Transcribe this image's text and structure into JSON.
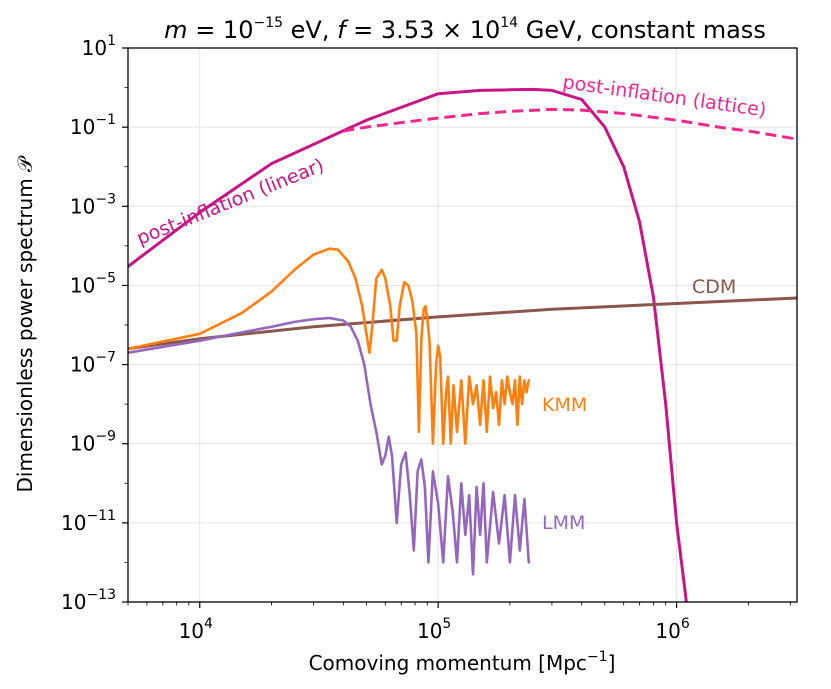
{
  "chart_data": {
    "type": "line",
    "title_parts": {
      "m_var": "m",
      "m_eq": " = 10",
      "m_exp": "−15",
      "m_unit": " eV, ",
      "f_var": "f",
      "f_eq": " = 3.53 × 10",
      "f_exp": "14",
      "f_rest": " GeV, constant mass"
    },
    "xlabel_pre": "Comoving momentum [Mpc",
    "xlabel_exp": "−1",
    "xlabel_post": "]",
    "ylabel": "Dimensionless power spectrum 𝒫",
    "xscale": "log",
    "yscale": "log",
    "xlim": [
      5000,
      3200000
    ],
    "ylim": [
      1e-13,
      10
    ],
    "grid": true,
    "x_ticks": [
      {
        "value": 10000,
        "base": "10",
        "exp": "4"
      },
      {
        "value": 100000,
        "base": "10",
        "exp": "5"
      },
      {
        "value": 1000000,
        "base": "10",
        "exp": "6"
      }
    ],
    "y_ticks": [
      {
        "value": 10,
        "base": "10",
        "exp": "1"
      },
      {
        "value": 0.1,
        "base": "10",
        "exp": "−1"
      },
      {
        "value": 0.001,
        "base": "10",
        "exp": "−3"
      },
      {
        "value": 1e-05,
        "base": "10",
        "exp": "−5"
      },
      {
        "value": 1e-07,
        "base": "10",
        "exp": "−7"
      },
      {
        "value": 1e-09,
        "base": "10",
        "exp": "−9"
      },
      {
        "value": 1e-11,
        "base": "10",
        "exp": "−11"
      },
      {
        "value": 1e-13,
        "base": "10",
        "exp": "−13"
      }
    ],
    "series": [
      {
        "name": "post-inflation (linear)",
        "color": "#c71585",
        "style": "solid",
        "x": [
          5000,
          10000,
          20000,
          50000,
          100000,
          150000,
          200000,
          250000,
          300000,
          400000,
          500000,
          600000,
          700000,
          800000,
          900000,
          1000000,
          1100000
        ],
        "y": [
          3e-05,
          0.0007,
          0.012,
          0.15,
          0.7,
          0.85,
          0.88,
          0.9,
          0.85,
          0.5,
          0.1,
          0.01,
          0.0004,
          5e-06,
          1e-08,
          1e-11,
          1e-13
        ]
      },
      {
        "name": "post-inflation (lattice)",
        "color": "#f0288e",
        "style": "dashed",
        "x": [
          40000,
          50000,
          70000,
          100000,
          150000,
          200000,
          300000,
          400000,
          600000,
          1000000,
          1500000,
          2000000,
          3200000
        ],
        "y": [
          0.08,
          0.1,
          0.13,
          0.17,
          0.22,
          0.25,
          0.28,
          0.27,
          0.22,
          0.15,
          0.1,
          0.08,
          0.05
        ]
      },
      {
        "name": "CDM",
        "color": "#8c564b",
        "style": "solid",
        "x": [
          5000,
          10000,
          30000,
          100000,
          300000,
          1000000,
          3200000
        ],
        "y": [
          2.5e-07,
          4.5e-07,
          9e-07,
          1.6e-06,
          2.5e-06,
          3.5e-06,
          4.8e-06
        ]
      },
      {
        "name": "KMM",
        "color": "#ff7f0e",
        "style": "solid",
        "x": [
          5000,
          10000,
          15000,
          20000,
          25000,
          30000,
          35000,
          38000,
          42000,
          45000,
          48000,
          50000,
          51500,
          53000,
          55000,
          58000,
          60000,
          63000,
          65000,
          67000,
          69000,
          72000,
          75000,
          78000,
          81000,
          83000,
          85000,
          87000,
          88500,
          90000,
          92000,
          95000,
          98000,
          100000,
          102000,
          105000,
          108000,
          110000,
          113000,
          116000,
          120000,
          125000,
          130000,
          135000,
          140000,
          145000,
          150000,
          155000,
          160000,
          165000,
          170000,
          175000,
          180000,
          185000,
          190000,
          195000,
          200000,
          205000,
          210000,
          215000,
          220000,
          225000,
          230000,
          235000,
          240000
        ],
        "y": [
          2.5e-07,
          6e-07,
          2e-06,
          7e-06,
          2.5e-05,
          6e-05,
          8.5e-05,
          8e-05,
          4e-05,
          1.5e-05,
          3e-06,
          6e-07,
          2e-07,
          1e-06,
          1.5e-05,
          2.5e-05,
          1.5e-05,
          3e-06,
          4e-07,
          4e-07,
          3e-06,
          1.2e-05,
          1e-05,
          4e-06,
          6e-07,
          2e-09,
          4e-07,
          2.5e-06,
          3e-06,
          1.5e-06,
          4e-07,
          1e-09,
          1e-07,
          3e-07,
          1.5e-07,
          1e-09,
          2e-08,
          5e-08,
          1e-09,
          3e-08,
          2e-09,
          4e-08,
          1e-09,
          5e-08,
          1e-08,
          3e-08,
          3e-09,
          4e-08,
          2e-09,
          5e-08,
          8e-09,
          2e-08,
          3e-09,
          4e-08,
          1e-08,
          5e-08,
          2e-08,
          1e-08,
          4e-08,
          3e-09,
          5e-08,
          1e-08,
          4e-08,
          2e-08,
          4e-08
        ]
      },
      {
        "name": "LMM",
        "color": "#9467bd",
        "style": "solid",
        "x": [
          5000,
          10000,
          15000,
          20000,
          25000,
          30000,
          35000,
          40000,
          43000,
          46000,
          49000,
          52000,
          55000,
          58000,
          60000,
          62000,
          64000,
          67000,
          70000,
          73000,
          76000,
          79000,
          82000,
          85000,
          88000,
          91000,
          95000,
          100000,
          105000,
          110000,
          115000,
          120000,
          125000,
          130000,
          135000,
          140000,
          145000,
          150000,
          155000,
          160000,
          170000,
          180000,
          190000,
          200000,
          210000,
          220000,
          230000,
          240000
        ],
        "y": [
          2e-07,
          4e-07,
          6.5e-07,
          9e-07,
          1.2e-06,
          1.4e-06,
          1.5e-06,
          1.3e-06,
          9e-07,
          4e-07,
          1e-07,
          1e-08,
          2e-09,
          3e-10,
          5e-10,
          1.5e-09,
          5e-10,
          1e-11,
          3e-10,
          6e-10,
          5e-11,
          2e-12,
          2e-10,
          4e-10,
          8e-11,
          1e-12,
          2e-10,
          3e-11,
          1e-12,
          1.5e-10,
          2e-11,
          1e-12,
          1e-10,
          5e-12,
          5e-11,
          5e-13,
          8e-11,
          5e-12,
          1e-10,
          1e-12,
          6e-11,
          3e-12,
          5e-11,
          1e-12,
          5e-11,
          2e-12,
          4e-11,
          1e-12
        ]
      }
    ],
    "annotations": [
      {
        "text": "post-inflation (linear)",
        "series": "post-inflation (linear)"
      },
      {
        "text": "post-inflation (lattice)",
        "series": "post-inflation (lattice)"
      },
      {
        "text": "CDM",
        "series": "CDM"
      },
      {
        "text": "KMM",
        "series": "KMM"
      },
      {
        "text": "LMM",
        "series": "LMM"
      }
    ]
  }
}
